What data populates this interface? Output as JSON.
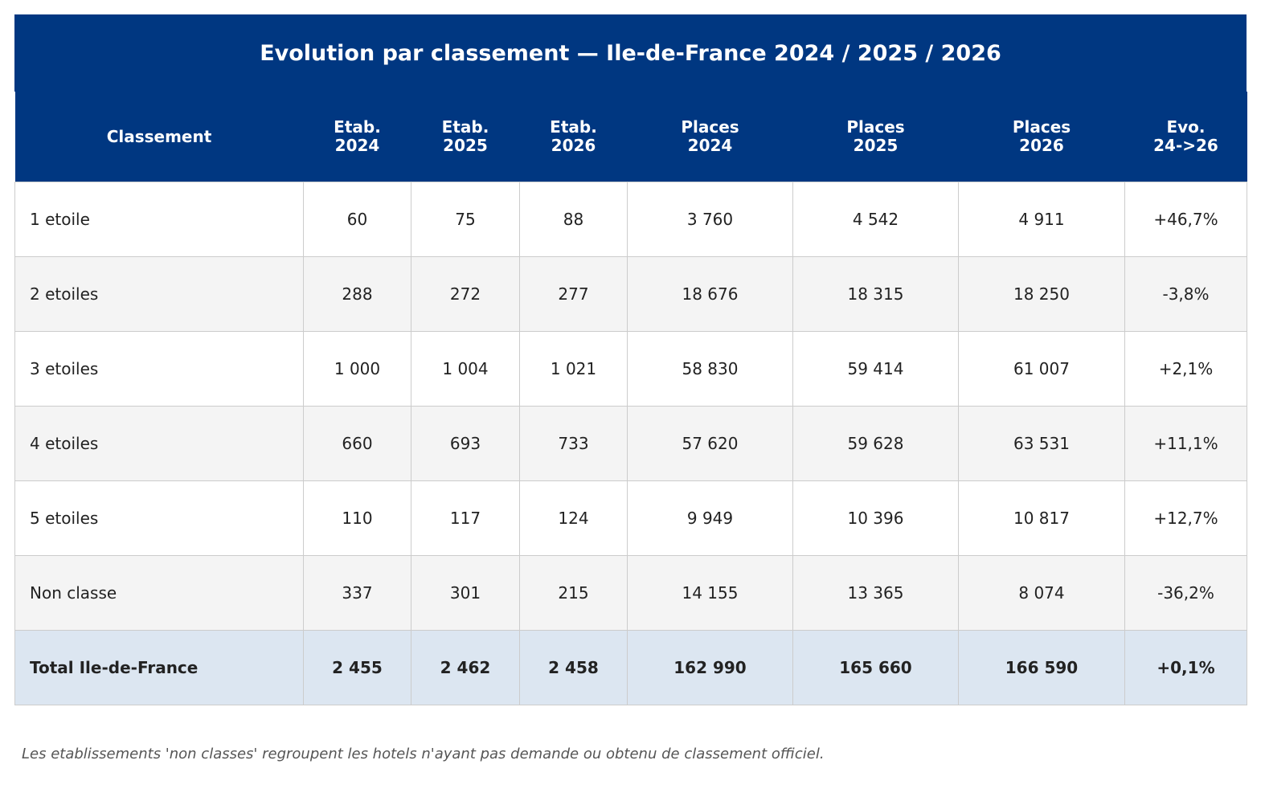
{
  "chart_data": {
    "type": "table",
    "title": "Evolution par classement — Ile-de-France 2024 / 2025 / 2026",
    "columns": [
      "Classement",
      "Etab.\n2024",
      "Etab.\n2025",
      "Etab.\n2026",
      "Places\n2024",
      "Places\n2025",
      "Places\n2026",
      "Evo.\n24->26"
    ],
    "rows": [
      [
        "1 etoile",
        "60",
        "75",
        "88",
        "3 760",
        "4 542",
        "4 911",
        "+46,7%"
      ],
      [
        "2 etoiles",
        "288",
        "272",
        "277",
        "18 676",
        "18 315",
        "18 250",
        "-3,8%"
      ],
      [
        "3 etoiles",
        "1 000",
        "1 004",
        "1 021",
        "58 830",
        "59 414",
        "61 007",
        "+2,1%"
      ],
      [
        "4 etoiles",
        "660",
        "693",
        "733",
        "57 620",
        "59 628",
        "63 531",
        "+11,1%"
      ],
      [
        "5 etoiles",
        "110",
        "117",
        "124",
        "9 949",
        "10 396",
        "10 817",
        "+12,7%"
      ],
      [
        "Non classe",
        "337",
        "301",
        "215",
        "14 155",
        "13 365",
        "8 074",
        "-36,2%"
      ]
    ],
    "total_row": [
      "Total Ile-de-France",
      "2 455",
      "2 462",
      "2 458",
      "162 990",
      "165 660",
      "166 590",
      "+0,1%"
    ],
    "footnote": "Les etablissements 'non classes' regroupent les hotels n'ayant pas demande ou obtenu de classement officiel."
  },
  "colors": {
    "header_bg": "#003781",
    "header_text": "#ffffff",
    "row_alt_bg": "#f4f4f4",
    "total_bg": "#dce6f1",
    "border": "#cccccc"
  }
}
